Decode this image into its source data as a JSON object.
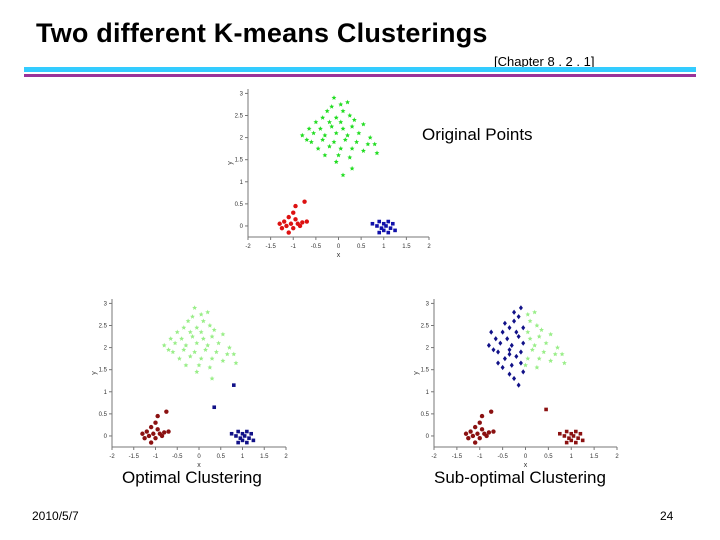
{
  "slide": {
    "title": "Two different K-means Clusterings",
    "reference": "[Chapter 8 . 2 . 1]",
    "footer_date": "2010/5/7",
    "page_number": "24",
    "rule_colors": [
      "#33ccff",
      "#993399"
    ]
  },
  "chart_data": [
    {
      "type": "scatter",
      "caption": "Original Points",
      "xlabel": "x",
      "ylabel": "y",
      "xlim": [
        -2,
        2
      ],
      "ylim": [
        -0.25,
        3.1
      ],
      "xticks": [
        "-2",
        "-1.5",
        "-1",
        "-0.5",
        "0",
        "0.5",
        "1",
        "1.5",
        "2"
      ],
      "yticks": [
        "0",
        "0.5",
        "1",
        "1.5",
        "2",
        "2.5",
        "3"
      ],
      "series": [
        {
          "color": "#22dd22",
          "marker": "star",
          "points": [
            [
              -0.1,
              2.9
            ],
            [
              0.05,
              2.75
            ],
            [
              -0.25,
              2.6
            ],
            [
              0.1,
              2.6
            ],
            [
              -0.35,
              2.45
            ],
            [
              -0.05,
              2.45
            ],
            [
              0.25,
              2.5
            ],
            [
              -0.5,
              2.35
            ],
            [
              -0.2,
              2.35
            ],
            [
              0.05,
              2.35
            ],
            [
              0.35,
              2.4
            ],
            [
              -0.65,
              2.2
            ],
            [
              -0.4,
              2.2
            ],
            [
              -0.15,
              2.25
            ],
            [
              0.1,
              2.2
            ],
            [
              0.3,
              2.25
            ],
            [
              0.55,
              2.3
            ],
            [
              -0.8,
              2.05
            ],
            [
              -0.55,
              2.1
            ],
            [
              -0.3,
              2.05
            ],
            [
              -0.05,
              2.1
            ],
            [
              0.2,
              2.05
            ],
            [
              0.45,
              2.1
            ],
            [
              0.7,
              2.0
            ],
            [
              -0.6,
              1.9
            ],
            [
              -0.35,
              1.95
            ],
            [
              -0.1,
              1.9
            ],
            [
              0.15,
              1.95
            ],
            [
              0.4,
              1.9
            ],
            [
              0.65,
              1.85
            ],
            [
              -0.45,
              1.75
            ],
            [
              -0.2,
              1.8
            ],
            [
              0.05,
              1.75
            ],
            [
              0.3,
              1.75
            ],
            [
              0.55,
              1.7
            ],
            [
              0.85,
              1.65
            ],
            [
              -0.3,
              1.6
            ],
            [
              0.0,
              1.6
            ],
            [
              0.25,
              1.55
            ],
            [
              -0.15,
              2.7
            ],
            [
              0.2,
              2.8
            ],
            [
              -0.05,
              1.45
            ],
            [
              0.3,
              1.3
            ],
            [
              0.1,
              1.15
            ],
            [
              -0.7,
              1.95
            ],
            [
              0.8,
              1.85
            ]
          ]
        },
        {
          "color": "#dd1111",
          "marker": "dot",
          "points": [
            [
              -1.0,
              0.3
            ],
            [
              -1.1,
              0.2
            ],
            [
              -0.95,
              0.15
            ],
            [
              -1.2,
              0.1
            ],
            [
              -1.05,
              0.05
            ],
            [
              -0.9,
              0.05
            ],
            [
              -1.15,
              0.0
            ],
            [
              -1.0,
              -0.05
            ],
            [
              -0.85,
              0.0
            ],
            [
              -1.25,
              -0.05
            ],
            [
              -0.8,
              0.08
            ],
            [
              -1.3,
              0.05
            ],
            [
              -0.95,
              0.45
            ],
            [
              -0.75,
              0.55
            ],
            [
              -0.7,
              0.1
            ],
            [
              -1.1,
              -0.15
            ]
          ]
        },
        {
          "color": "#1111aa",
          "marker": "square",
          "points": [
            [
              0.9,
              0.1
            ],
            [
              1.0,
              0.05
            ],
            [
              1.1,
              0.1
            ],
            [
              0.95,
              -0.05
            ],
            [
              1.05,
              0.0
            ],
            [
              1.15,
              -0.05
            ],
            [
              0.85,
              0.0
            ],
            [
              1.0,
              -0.1
            ],
            [
              1.2,
              0.05
            ],
            [
              1.1,
              -0.15
            ],
            [
              0.9,
              -0.15
            ],
            [
              0.75,
              0.05
            ],
            [
              1.25,
              -0.1
            ]
          ]
        }
      ]
    },
    {
      "type": "scatter",
      "caption": "Optimal Clustering",
      "xlabel": "x",
      "ylabel": "y",
      "xlim": [
        -2,
        2
      ],
      "ylim": [
        -0.25,
        3.1
      ],
      "xticks": [
        "-2",
        "-1.5",
        "-1",
        "-0.5",
        "0",
        "0.5",
        "1",
        "1.5",
        "2"
      ],
      "yticks": [
        "0",
        "0.5",
        "1",
        "1.5",
        "2",
        "2.5",
        "3"
      ],
      "series": [
        {
          "color": "#99ee88",
          "marker": "star",
          "points": [
            [
              -0.1,
              2.9
            ],
            [
              0.05,
              2.75
            ],
            [
              -0.25,
              2.6
            ],
            [
              0.1,
              2.6
            ],
            [
              -0.35,
              2.45
            ],
            [
              -0.05,
              2.45
            ],
            [
              0.25,
              2.5
            ],
            [
              -0.5,
              2.35
            ],
            [
              -0.2,
              2.35
            ],
            [
              0.05,
              2.35
            ],
            [
              0.35,
              2.4
            ],
            [
              -0.65,
              2.2
            ],
            [
              -0.4,
              2.2
            ],
            [
              -0.15,
              2.25
            ],
            [
              0.1,
              2.2
            ],
            [
              0.3,
              2.25
            ],
            [
              0.55,
              2.3
            ],
            [
              -0.8,
              2.05
            ],
            [
              -0.55,
              2.1
            ],
            [
              -0.3,
              2.05
            ],
            [
              -0.05,
              2.1
            ],
            [
              0.2,
              2.05
            ],
            [
              0.45,
              2.1
            ],
            [
              0.7,
              2.0
            ],
            [
              -0.6,
              1.9
            ],
            [
              -0.35,
              1.95
            ],
            [
              -0.1,
              1.9
            ],
            [
              0.15,
              1.95
            ],
            [
              0.4,
              1.9
            ],
            [
              0.65,
              1.85
            ],
            [
              -0.45,
              1.75
            ],
            [
              -0.2,
              1.8
            ],
            [
              0.05,
              1.75
            ],
            [
              0.3,
              1.75
            ],
            [
              0.55,
              1.7
            ],
            [
              0.85,
              1.65
            ],
            [
              -0.3,
              1.6
            ],
            [
              0.0,
              1.6
            ],
            [
              0.25,
              1.55
            ],
            [
              -0.15,
              2.7
            ],
            [
              0.2,
              2.8
            ],
            [
              -0.05,
              1.45
            ],
            [
              0.3,
              1.3
            ],
            [
              -0.7,
              1.95
            ],
            [
              0.8,
              1.85
            ]
          ]
        },
        {
          "color": "#8b1111",
          "marker": "dot",
          "points": [
            [
              -1.0,
              0.3
            ],
            [
              -1.1,
              0.2
            ],
            [
              -0.95,
              0.15
            ],
            [
              -1.2,
              0.1
            ],
            [
              -1.05,
              0.05
            ],
            [
              -0.9,
              0.05
            ],
            [
              -1.15,
              0.0
            ],
            [
              -1.0,
              -0.05
            ],
            [
              -0.85,
              0.0
            ],
            [
              -1.25,
              -0.05
            ],
            [
              -0.8,
              0.08
            ],
            [
              -1.3,
              0.05
            ],
            [
              -0.95,
              0.45
            ],
            [
              -0.75,
              0.55
            ],
            [
              -0.7,
              0.1
            ],
            [
              -1.1,
              -0.15
            ]
          ]
        },
        {
          "color": "#111188",
          "marker": "square",
          "points": [
            [
              0.9,
              0.1
            ],
            [
              1.0,
              0.05
            ],
            [
              1.1,
              0.1
            ],
            [
              0.95,
              -0.05
            ],
            [
              1.05,
              0.0
            ],
            [
              1.15,
              -0.05
            ],
            [
              0.85,
              0.0
            ],
            [
              1.0,
              -0.1
            ],
            [
              1.2,
              0.05
            ],
            [
              1.1,
              -0.15
            ],
            [
              0.9,
              -0.15
            ],
            [
              0.75,
              0.05
            ],
            [
              1.25,
              -0.1
            ],
            [
              0.8,
              1.15
            ],
            [
              0.35,
              0.65
            ]
          ]
        }
      ]
    },
    {
      "type": "scatter",
      "caption": "Sub-optimal Clustering",
      "xlabel": "x",
      "ylabel": "y",
      "xlim": [
        -2,
        2
      ],
      "ylim": [
        -0.25,
        3.1
      ],
      "xticks": [
        "-2",
        "-1.5",
        "-1",
        "-0.5",
        "0",
        "0.5",
        "1",
        "1.5",
        "2"
      ],
      "yticks": [
        "0",
        "0.5",
        "1",
        "1.5",
        "2",
        "2.5",
        "3"
      ],
      "series": [
        {
          "color": "#111188",
          "marker": "diamond",
          "points": [
            [
              -0.1,
              2.9
            ],
            [
              -0.25,
              2.6
            ],
            [
              -0.05,
              2.45
            ],
            [
              -0.35,
              2.45
            ],
            [
              -0.5,
              2.35
            ],
            [
              -0.2,
              2.35
            ],
            [
              -0.65,
              2.2
            ],
            [
              -0.4,
              2.2
            ],
            [
              -0.15,
              2.25
            ],
            [
              -0.8,
              2.05
            ],
            [
              -0.55,
              2.1
            ],
            [
              -0.3,
              2.05
            ],
            [
              -0.05,
              2.1
            ],
            [
              -0.6,
              1.9
            ],
            [
              -0.35,
              1.95
            ],
            [
              -0.1,
              1.9
            ],
            [
              -0.45,
              1.75
            ],
            [
              -0.2,
              1.8
            ],
            [
              -0.3,
              1.6
            ],
            [
              -0.15,
              2.7
            ],
            [
              -0.05,
              1.45
            ],
            [
              -0.7,
              1.95
            ],
            [
              -0.25,
              1.3
            ],
            [
              -0.15,
              1.15
            ],
            [
              -0.35,
              1.4
            ],
            [
              -0.5,
              1.55
            ],
            [
              -0.75,
              2.35
            ],
            [
              -0.25,
              2.8
            ],
            [
              -0.45,
              2.55
            ],
            [
              -0.1,
              1.65
            ],
            [
              -0.6,
              1.65
            ],
            [
              -0.35,
              1.85
            ]
          ]
        },
        {
          "color": "#99ee88",
          "marker": "star",
          "points": [
            [
              0.05,
              2.75
            ],
            [
              0.1,
              2.6
            ],
            [
              0.25,
              2.5
            ],
            [
              0.05,
              2.35
            ],
            [
              0.35,
              2.4
            ],
            [
              0.1,
              2.2
            ],
            [
              0.3,
              2.25
            ],
            [
              0.55,
              2.3
            ],
            [
              0.2,
              2.05
            ],
            [
              0.45,
              2.1
            ],
            [
              0.7,
              2.0
            ],
            [
              0.15,
              1.95
            ],
            [
              0.4,
              1.9
            ],
            [
              0.65,
              1.85
            ],
            [
              0.05,
              1.75
            ],
            [
              0.3,
              1.75
            ],
            [
              0.55,
              1.7
            ],
            [
              0.85,
              1.65
            ],
            [
              0.0,
              1.6
            ],
            [
              0.25,
              1.55
            ],
            [
              0.2,
              2.8
            ],
            [
              0.8,
              1.85
            ]
          ]
        },
        {
          "color": "#8b1111",
          "marker": "dot",
          "points": [
            [
              -1.0,
              0.3
            ],
            [
              -1.1,
              0.2
            ],
            [
              -0.95,
              0.15
            ],
            [
              -1.2,
              0.1
            ],
            [
              -1.05,
              0.05
            ],
            [
              -0.9,
              0.05
            ],
            [
              -1.15,
              0.0
            ],
            [
              -1.0,
              -0.05
            ],
            [
              -0.85,
              0.0
            ],
            [
              -1.25,
              -0.05
            ],
            [
              -0.8,
              0.08
            ],
            [
              -1.3,
              0.05
            ],
            [
              -0.95,
              0.45
            ],
            [
              -0.75,
              0.55
            ],
            [
              -0.7,
              0.1
            ],
            [
              -1.1,
              -0.15
            ]
          ]
        },
        {
          "color": "#8b1111",
          "marker": "square",
          "points": [
            [
              0.9,
              0.1
            ],
            [
              1.0,
              0.05
            ],
            [
              1.1,
              0.1
            ],
            [
              0.95,
              -0.05
            ],
            [
              1.05,
              0.0
            ],
            [
              1.15,
              -0.05
            ],
            [
              0.85,
              0.0
            ],
            [
              1.0,
              -0.1
            ],
            [
              1.2,
              0.05
            ],
            [
              1.1,
              -0.15
            ],
            [
              0.9,
              -0.15
            ],
            [
              0.75,
              0.05
            ],
            [
              1.25,
              -0.1
            ],
            [
              0.45,
              0.6
            ]
          ]
        }
      ]
    }
  ]
}
